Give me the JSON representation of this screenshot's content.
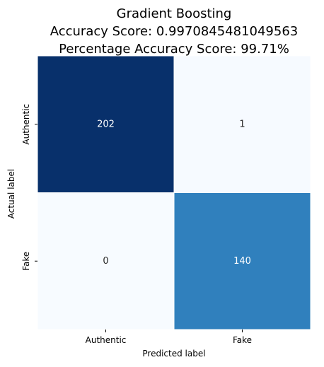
{
  "chart_data": {
    "type": "heatmap",
    "title_lines": [
      "Gradient Boosting",
      "Accuracy Score: 0.9970845481049563",
      "Percentage Accuracy Score: 99.71%"
    ],
    "xlabel": "Predicted label",
    "ylabel": "Actual label",
    "x_categories": [
      "Authentic",
      "Fake"
    ],
    "y_categories": [
      "Authentic",
      "Fake"
    ],
    "values": [
      [
        202,
        1
      ],
      [
        0,
        140
      ]
    ],
    "colormap": "Blues",
    "colormap_stops": [
      "#f7fbff",
      "#deebf7",
      "#c6dbef",
      "#9ecae1",
      "#6baed6",
      "#4292c6",
      "#2171b5",
      "#08519c",
      "#08306b"
    ],
    "cell_border_color": "#ffffff",
    "colorbar": false
  }
}
